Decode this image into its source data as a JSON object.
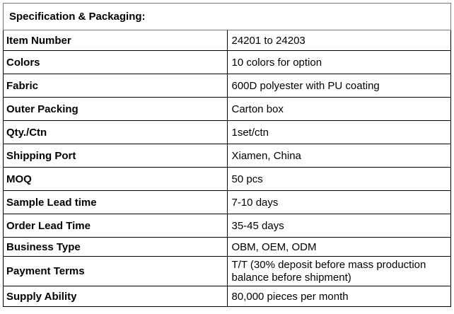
{
  "title": "Specification & Packaging:",
  "rows": [
    {
      "label": "Item Number",
      "value": "24201 to 24203"
    },
    {
      "label": "Colors",
      "value": "10 colors for option"
    },
    {
      "label": "Fabric",
      "value": "600D polyester with PU coating"
    },
    {
      "label": "Outer Packing",
      "value": "Carton box"
    },
    {
      "label": "Qty./Ctn",
      "value": "1set/ctn"
    },
    {
      "label": "Shipping Port",
      "value": "Xiamen, China"
    },
    {
      "label": "MOQ",
      "value": "50 pcs"
    },
    {
      "label": "Sample Lead time",
      "value": "7-10 days"
    },
    {
      "label": "Order Lead Time",
      "value": "35-45 days"
    },
    {
      "label": "Business Type",
      "value": "OBM, OEM, ODM"
    },
    {
      "label": "Payment Terms",
      "value": "T/T (30% deposit before mass production balance before shipment)"
    },
    {
      "label": "Supply Ability",
      "value": "80,000 pieces per month"
    }
  ]
}
